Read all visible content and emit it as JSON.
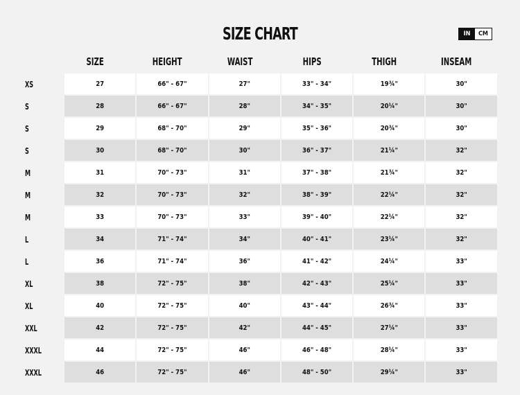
{
  "title": "SIZE CHART",
  "unit_toggle": {
    "options": [
      "IN",
      "CM"
    ],
    "selected": "IN"
  },
  "columns": [
    "SIZE",
    "HEIGHT",
    "WAIST",
    "HIPS",
    "THIGH",
    "INSEAM"
  ],
  "rows": [
    {
      "label": "XS",
      "cells": [
        "27",
        "66\" - 67\"",
        "27\"",
        "33\" - 34\"",
        "19¾\"",
        "30\""
      ]
    },
    {
      "label": "S",
      "cells": [
        "28",
        "66\" - 67\"",
        "28\"",
        "34\" - 35\"",
        "20¼\"",
        "30\""
      ]
    },
    {
      "label": "S",
      "cells": [
        "29",
        "68\" - 70\"",
        "29\"",
        "35\" - 36\"",
        "20¾\"",
        "30\""
      ]
    },
    {
      "label": "S",
      "cells": [
        "30",
        "68\" - 70\"",
        "30\"",
        "36\" - 37\"",
        "21¼\"",
        "32\""
      ]
    },
    {
      "label": "M",
      "cells": [
        "31",
        "70\" - 73\"",
        "31\"",
        "37\" - 38\"",
        "21¾\"",
        "32\""
      ]
    },
    {
      "label": "M",
      "cells": [
        "32",
        "70\" - 73\"",
        "32\"",
        "38\" - 39\"",
        "22¼\"",
        "32\""
      ]
    },
    {
      "label": "M",
      "cells": [
        "33",
        "70\" - 73\"",
        "33\"",
        "39\" - 40\"",
        "22¼\"",
        "32\""
      ]
    },
    {
      "label": "L",
      "cells": [
        "34",
        "71\" - 74\"",
        "34\"",
        "40\" - 41\"",
        "23¼\"",
        "32\""
      ]
    },
    {
      "label": "L",
      "cells": [
        "36",
        "71\" - 74\"",
        "36\"",
        "41\" - 42\"",
        "24¼\"",
        "33\""
      ]
    },
    {
      "label": "XL",
      "cells": [
        "38",
        "72\" - 75\"",
        "38\"",
        "42\" - 43\"",
        "25¼\"",
        "33\""
      ]
    },
    {
      "label": "XL",
      "cells": [
        "40",
        "72\" - 75\"",
        "40\"",
        "43\" - 44\"",
        "26¾\"",
        "33\""
      ]
    },
    {
      "label": "XXL",
      "cells": [
        "42",
        "72\" - 75\"",
        "42\"",
        "44\" - 45\"",
        "27¼\"",
        "33\""
      ]
    },
    {
      "label": "XXXL",
      "cells": [
        "44",
        "72\" - 75\"",
        "46\"",
        "46\" - 48\"",
        "28¼\"",
        "33\""
      ]
    },
    {
      "label": "XXXL",
      "cells": [
        "46",
        "72\" - 75\"",
        "46\"",
        "48\" - 50\"",
        "29¼\"",
        "33\""
      ]
    }
  ]
}
